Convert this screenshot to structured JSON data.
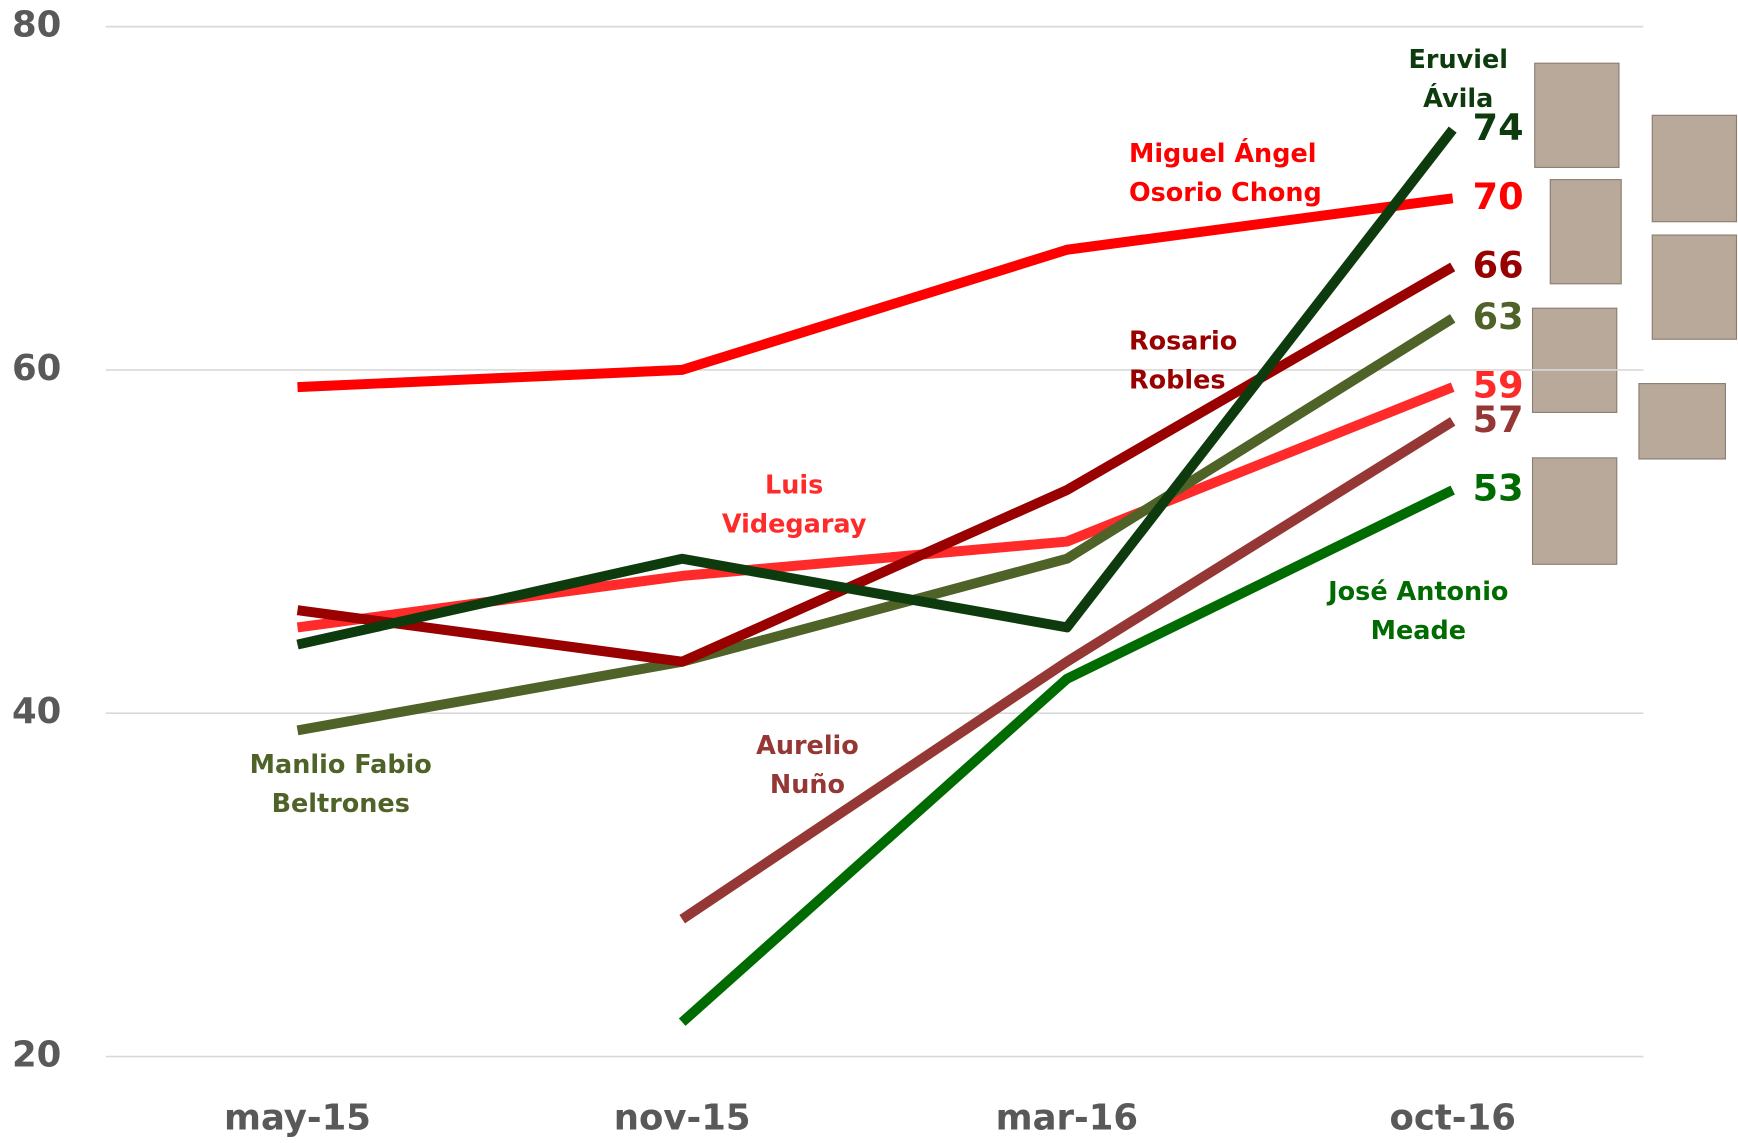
{
  "chart_data": {
    "type": "line",
    "categories": [
      "may-15",
      "nov-15",
      "mar-16",
      "oct-16"
    ],
    "ylim": [
      20,
      80
    ],
    "yticks": [
      20,
      40,
      60,
      80
    ],
    "grid": true,
    "series": [
      {
        "name": [
          "Miguel Ángel",
          "Osorio Chong"
        ],
        "color": "#ff0000",
        "values": [
          59,
          60,
          67,
          70
        ]
      },
      {
        "name": [
          "Luis",
          "Videgaray"
        ],
        "color": "#ff2a2a",
        "values": [
          45,
          48,
          50,
          59
        ]
      },
      {
        "name": [
          "Manlio Fabio",
          "Beltrones"
        ],
        "color": "#4f6228",
        "values": [
          39,
          43,
          49,
          63
        ]
      },
      {
        "name": [
          "Rosario",
          "Robles"
        ],
        "color": "#990000",
        "values": [
          46,
          43,
          53,
          66
        ]
      },
      {
        "name": [
          "Aurelio",
          "Nuño"
        ],
        "color": "#953735",
        "values": [
          null,
          28,
          43,
          57
        ]
      },
      {
        "name": [
          "José Antonio",
          "Meade"
        ],
        "color": "#006b00",
        "values": [
          null,
          22,
          42,
          53
        ]
      },
      {
        "name": [
          "Eruviel",
          "Ávila"
        ],
        "color": "#0d3b0d",
        "values": [
          44,
          49,
          45,
          74
        ]
      }
    ]
  }
}
